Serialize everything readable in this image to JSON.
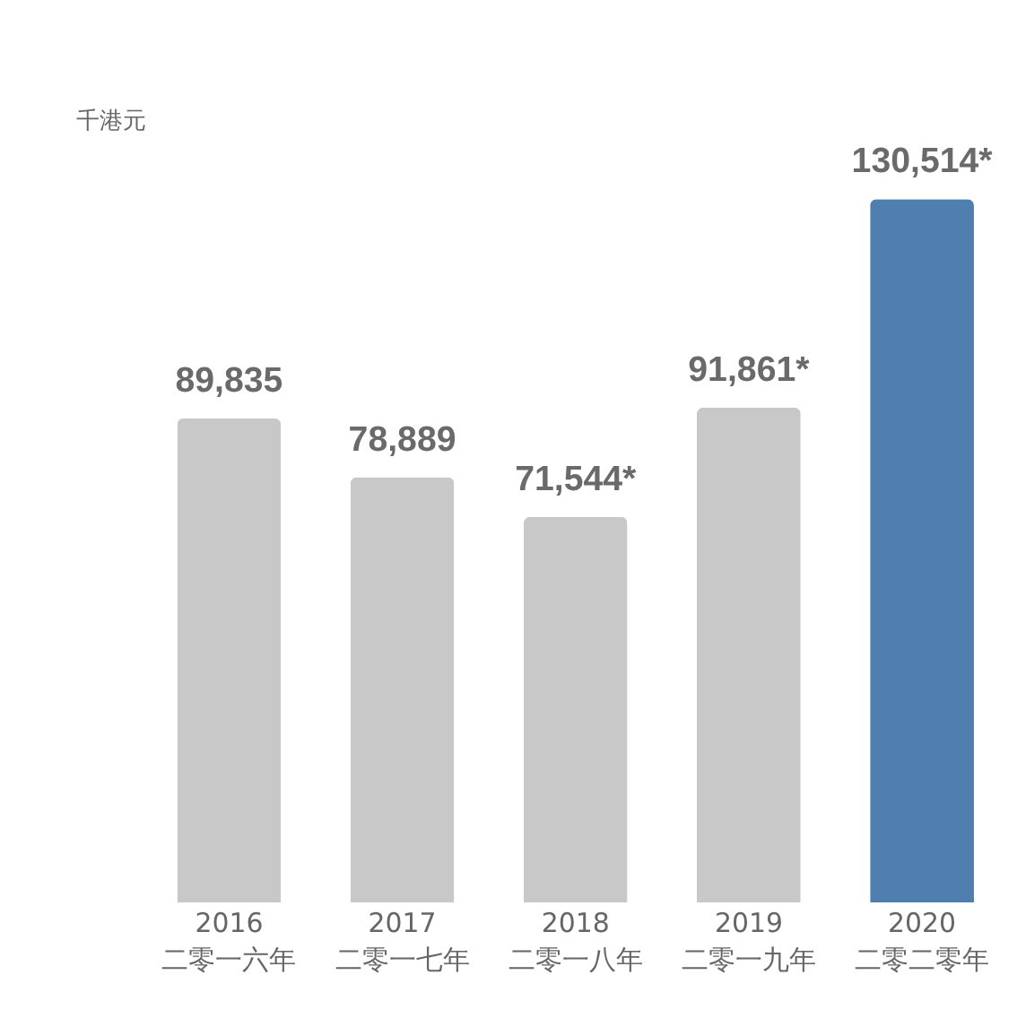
{
  "chart_data": {
    "type": "bar",
    "ylabel": "千港元",
    "categories": [
      "2016\n二零一六年",
      "2017\n二零一七年",
      "2018\n二零一八年",
      "2019\n二零一九年",
      "2020\n二零二零年"
    ],
    "values": [
      89835,
      78889,
      71544,
      91861,
      130514
    ],
    "value_labels": [
      "89,835",
      "78,889",
      "71,544*",
      "91,861*",
      "130,514*"
    ],
    "colors": [
      "#c8c8c8",
      "#c8c8c8",
      "#c8c8c8",
      "#c8c8c8",
      "#4f7fae"
    ],
    "grid": false
  }
}
